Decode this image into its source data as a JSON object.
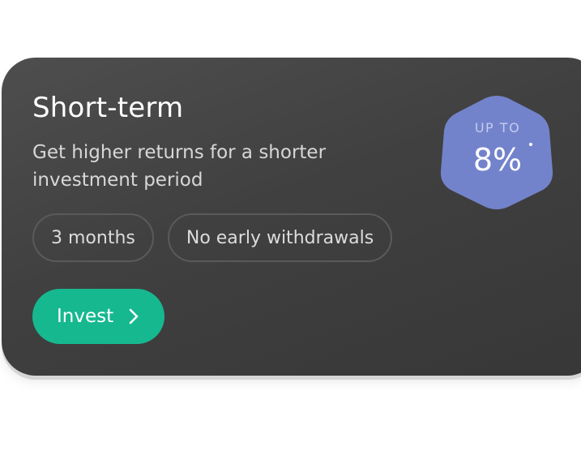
{
  "card": {
    "title": "Short-term",
    "description": "Get higher returns for a shorter investment period",
    "tags": [
      "3 months",
      "No early withdrawals"
    ],
    "invest_label": "Invest",
    "badge": {
      "caption": "UP TO",
      "rate": "8%"
    }
  },
  "icons": {
    "button_icon": "chevron-right-icon"
  },
  "colors": {
    "card_background": "#444444",
    "accent_button": "#16b890",
    "badge": "#7383cb",
    "text_primary": "#ffffff",
    "text_secondary": "#d7d7d7"
  }
}
